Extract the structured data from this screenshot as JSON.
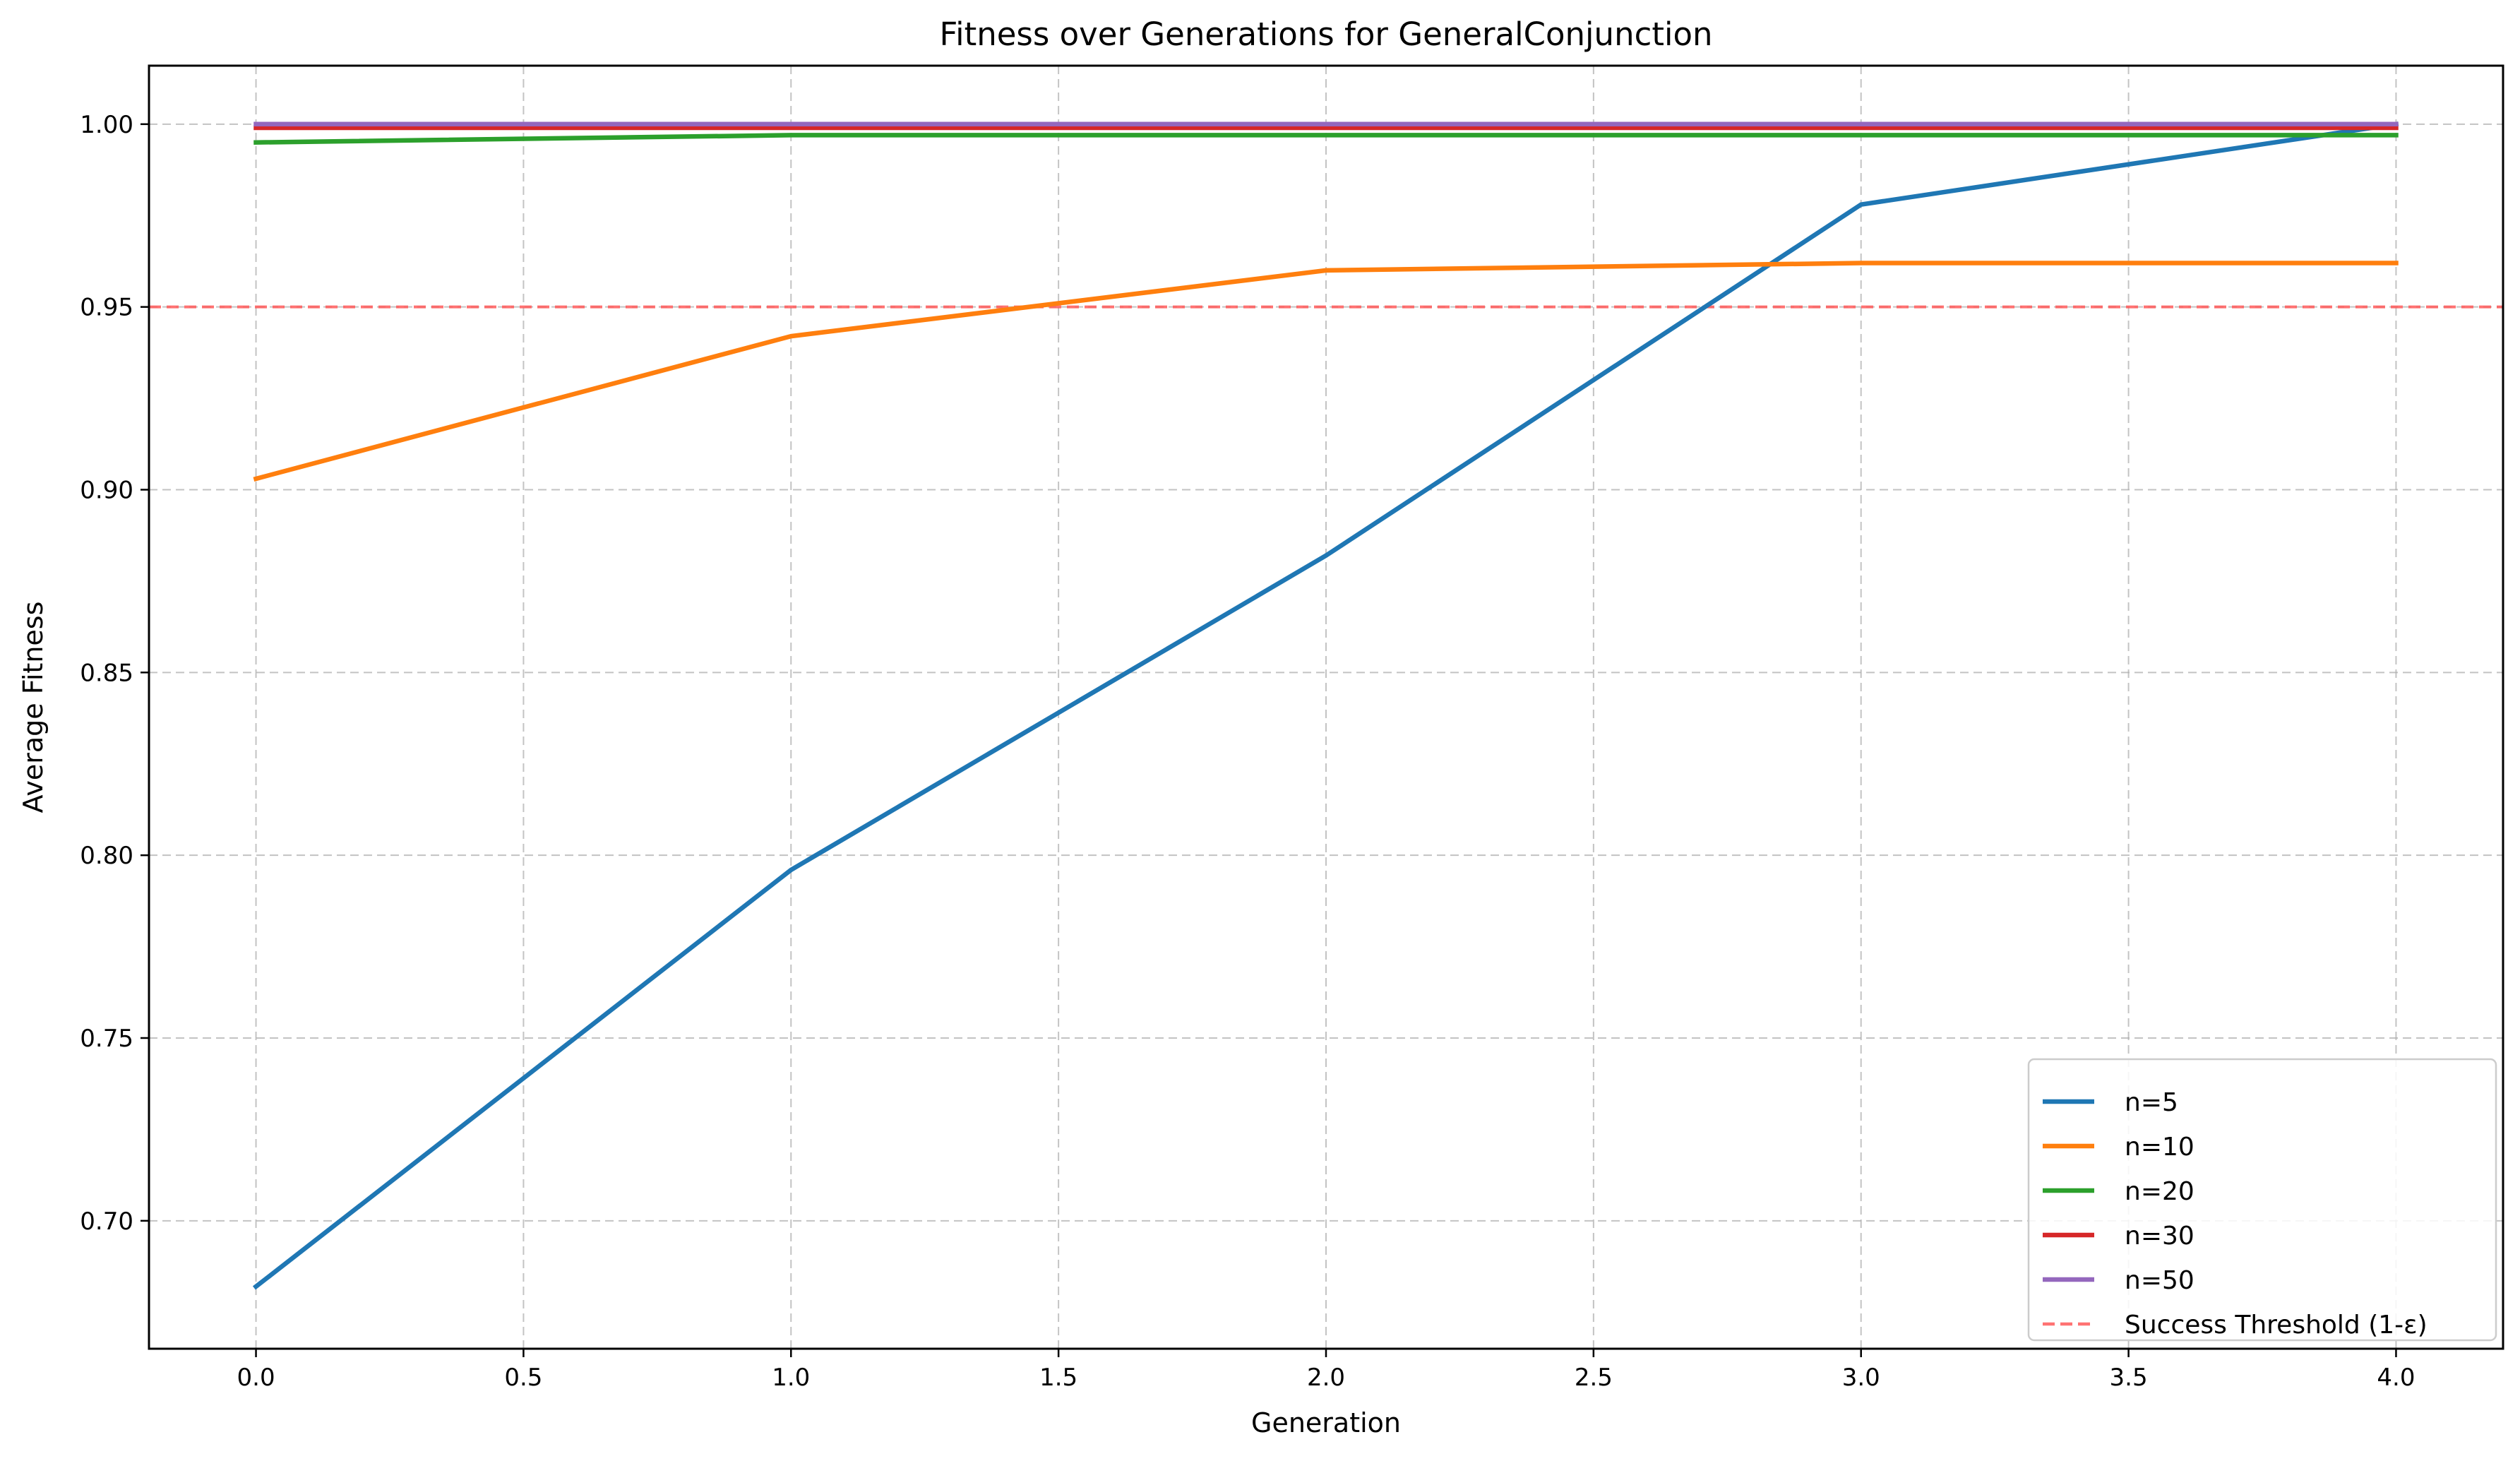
{
  "chart_data": {
    "type": "line",
    "title": "Fitness over Generations for GeneralConjunction",
    "xlabel": "Generation",
    "ylabel": "Average Fitness",
    "xlim": [
      -0.2,
      4.2
    ],
    "ylim": [
      0.665,
      1.016
    ],
    "xticks": [
      0.0,
      0.5,
      1.0,
      1.5,
      2.0,
      2.5,
      3.0,
      3.5,
      4.0
    ],
    "xtick_labels": [
      "0.0",
      "0.5",
      "1.0",
      "1.5",
      "2.0",
      "2.5",
      "3.0",
      "3.5",
      "4.0"
    ],
    "yticks": [
      0.7,
      0.75,
      0.8,
      0.85,
      0.9,
      0.95,
      1.0
    ],
    "ytick_labels": [
      "0.70",
      "0.75",
      "0.80",
      "0.85",
      "0.90",
      "0.95",
      "1.00"
    ],
    "grid": true,
    "grid_style": "dashed",
    "legend_position": "lower-right",
    "x": [
      0,
      1,
      2,
      3,
      4
    ],
    "series": [
      {
        "name": "n=5",
        "color": "#1f77b4",
        "values": [
          0.682,
          0.796,
          0.882,
          0.978,
          1.0
        ]
      },
      {
        "name": "n=10",
        "color": "#ff7f0e",
        "values": [
          0.903,
          0.942,
          0.96,
          0.962,
          0.962
        ]
      },
      {
        "name": "n=20",
        "color": "#2ca02c",
        "values": [
          0.995,
          0.997,
          0.997,
          0.997,
          0.997
        ]
      },
      {
        "name": "n=30",
        "color": "#d62728",
        "values": [
          0.999,
          0.999,
          0.999,
          0.999,
          0.999
        ]
      },
      {
        "name": "n=50",
        "color": "#9467bd",
        "values": [
          1.0,
          1.0,
          1.0,
          1.0,
          1.0
        ]
      }
    ],
    "reference_lines": [
      {
        "name": "Success Threshold (1-ε)",
        "orientation": "horizontal",
        "y": 0.95,
        "color": "#ff5a5a",
        "style": "dashed"
      }
    ]
  }
}
